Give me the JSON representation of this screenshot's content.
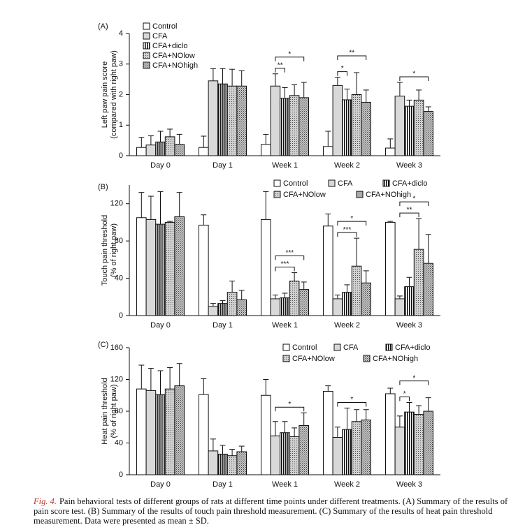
{
  "chart_data": [
    {
      "type": "bar",
      "panel_label": "(A)",
      "ylabel": [
        "Left paw pain score",
        "(compared with right paw)"
      ],
      "legend": "vertical",
      "categories": [
        "Day 0",
        "Day 1",
        "Week 1",
        "Week 2",
        "Week 3"
      ],
      "ylim": [
        0,
        4
      ],
      "yticks": [
        0,
        1,
        2,
        3,
        4
      ],
      "series": [
        {
          "name": "Control",
          "color": "#ffffff",
          "pattern": "solid",
          "values": [
            0.27,
            0.27,
            0.37,
            0.3,
            0.25
          ],
          "errors": [
            0.33,
            0.37,
            0.33,
            0.5,
            0.3
          ]
        },
        {
          "name": "CFA",
          "color": "#d9d9d9",
          "pattern": "solid",
          "values": [
            0.35,
            2.45,
            2.28,
            2.3,
            1.95
          ],
          "errors": [
            0.3,
            0.4,
            0.4,
            0.27,
            0.45
          ]
        },
        {
          "name": "CFA+diclo",
          "color": "#ffffff",
          "pattern": "stripes",
          "values": [
            0.45,
            2.35,
            1.88,
            1.83,
            1.62
          ],
          "errors": [
            0.35,
            0.5,
            0.35,
            0.35,
            0.2
          ]
        },
        {
          "name": "CFA+NOlow",
          "color": "#cfcfcf",
          "pattern": "dots",
          "values": [
            0.62,
            2.28,
            1.97,
            2.0,
            1.82
          ],
          "errors": [
            0.25,
            0.55,
            0.35,
            0.72,
            0.33
          ]
        },
        {
          "name": "CFA+NOhigh",
          "color": "#c4c4c4",
          "pattern": "checker",
          "values": [
            0.37,
            2.28,
            1.9,
            1.75,
            1.45
          ],
          "errors": [
            0.33,
            0.5,
            0.5,
            0.4,
            0.15
          ]
        }
      ],
      "annotations": [
        {
          "category": "Week 1",
          "between": [
            "CFA",
            "CFA+diclo"
          ],
          "label": "**"
        },
        {
          "category": "Week 1",
          "between": [
            "CFA",
            "CFA+NOhigh"
          ],
          "label": "*"
        },
        {
          "category": "Week 2",
          "between": [
            "CFA",
            "CFA+diclo"
          ],
          "label": "*"
        },
        {
          "category": "Week 2",
          "between": [
            "CFA",
            "CFA+NOhigh"
          ],
          "label": "**"
        },
        {
          "category": "Week 3",
          "between": [
            "CFA",
            "CFA+NOhigh"
          ],
          "label": "*"
        }
      ]
    },
    {
      "type": "bar",
      "panel_label": "(B)",
      "ylabel": [
        "Touch pain threshold",
        "(% of right paw)"
      ],
      "legend": "rows",
      "categories": [
        "Day 0",
        "Day 1",
        "Week 1",
        "Week 2",
        "Week 3"
      ],
      "ylim": [
        0,
        140
      ],
      "yticks": [
        0,
        40,
        80,
        120
      ],
      "series": [
        {
          "name": "Control",
          "color": "#ffffff",
          "pattern": "solid",
          "values": [
            105,
            97,
            103,
            96,
            100
          ],
          "errors": [
            27,
            11,
            30,
            13,
            1
          ]
        },
        {
          "name": "CFA",
          "color": "#d9d9d9",
          "pattern": "solid",
          "values": [
            103,
            10,
            18,
            18,
            18
          ],
          "errors": [
            25,
            3,
            4,
            4,
            3
          ]
        },
        {
          "name": "CFA+diclo",
          "color": "#ffffff",
          "pattern": "stripes",
          "values": [
            98,
            13,
            19,
            25,
            31
          ],
          "errors": [
            35,
            3,
            5,
            8,
            10
          ]
        },
        {
          "name": "CFA+NOlow",
          "color": "#cfcfcf",
          "pattern": "dots",
          "values": [
            100,
            25,
            37,
            53,
            71
          ],
          "errors": [
            1,
            12,
            9,
            30,
            33
          ]
        },
        {
          "name": "CFA+NOhigh",
          "color": "#c4c4c4",
          "pattern": "checker",
          "values": [
            106,
            17,
            28,
            35,
            56
          ],
          "errors": [
            26,
            10,
            8,
            13,
            31
          ]
        }
      ],
      "annotations": [
        {
          "category": "Week 1",
          "between": [
            "CFA",
            "CFA+NOlow"
          ],
          "label": "***"
        },
        {
          "category": "Week 1",
          "between": [
            "CFA",
            "CFA+NOhigh"
          ],
          "label": "***"
        },
        {
          "category": "Week 2",
          "between": [
            "CFA",
            "CFA+NOlow"
          ],
          "label": "***"
        },
        {
          "category": "Week 2",
          "between": [
            "CFA",
            "CFA+NOhigh"
          ],
          "label": "*"
        },
        {
          "category": "Week 3",
          "between": [
            "CFA",
            "CFA+NOlow"
          ],
          "label": "**"
        },
        {
          "category": "Week 3",
          "between": [
            "CFA",
            "CFA+NOhigh"
          ],
          "label": "*"
        }
      ]
    },
    {
      "type": "bar",
      "panel_label": "(C)",
      "ylabel": [
        "Heat pain threshold",
        "(% of right paw)"
      ],
      "legend": "rows",
      "categories": [
        "Day 0",
        "Day 1",
        "Week 1",
        "Week 2",
        "Week 3"
      ],
      "ylim": [
        0,
        160
      ],
      "yticks": [
        0,
        40,
        80,
        120,
        160
      ],
      "series": [
        {
          "name": "Control",
          "color": "#ffffff",
          "pattern": "solid",
          "values": [
            108,
            101,
            100,
            105,
            102
          ],
          "errors": [
            30,
            20,
            20,
            7,
            7
          ]
        },
        {
          "name": "CFA",
          "color": "#d9d9d9",
          "pattern": "solid",
          "values": [
            106,
            30,
            49,
            47,
            60
          ],
          "errors": [
            28,
            15,
            18,
            13,
            14
          ]
        },
        {
          "name": "CFA+diclo",
          "color": "#ffffff",
          "pattern": "stripes",
          "values": [
            101,
            26,
            53,
            57,
            79
          ],
          "errors": [
            30,
            11,
            14,
            27,
            12
          ]
        },
        {
          "name": "CFA+NOlow",
          "color": "#cfcfcf",
          "pattern": "dots",
          "values": [
            108,
            24,
            48,
            67,
            76
          ],
          "errors": [
            27,
            8,
            11,
            15,
            11
          ]
        },
        {
          "name": "CFA+NOhigh",
          "color": "#c4c4c4",
          "pattern": "checker",
          "values": [
            112,
            29,
            62,
            69,
            80
          ],
          "errors": [
            28,
            7,
            16,
            13,
            17
          ]
        }
      ],
      "annotations": [
        {
          "category": "Week 1",
          "between": [
            "CFA",
            "CFA+NOhigh"
          ],
          "label": "*"
        },
        {
          "category": "Week 2",
          "between": [
            "CFA",
            "CFA+NOhigh"
          ],
          "label": "*"
        },
        {
          "category": "Week 3",
          "between": [
            "CFA",
            "CFA+diclo"
          ],
          "label": "*"
        },
        {
          "category": "Week 3",
          "between": [
            "CFA",
            "CFA+NOhigh"
          ],
          "label": "*"
        }
      ]
    }
  ],
  "caption": {
    "label": "Fig. 4.",
    "text": "Pain behavioral tests of different groups of rats at different time points under different treatments. (A) Summary of the results of pain score test. (B) Summary of the results of touch pain threshold measurement. (C) Summary of the results of heat pain threshold measurement. Data were presented as mean ± SD."
  }
}
